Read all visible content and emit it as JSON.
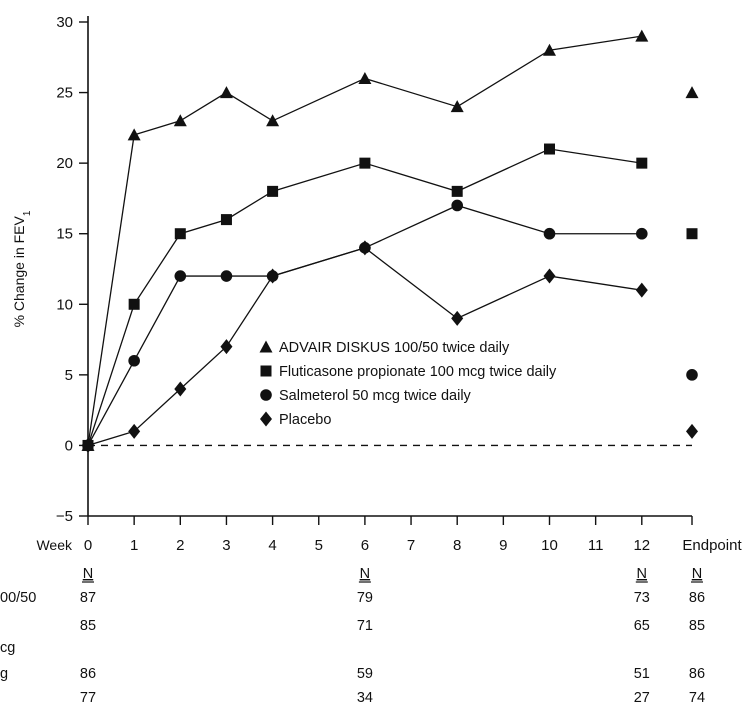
{
  "chart_data": {
    "type": "line",
    "title": "",
    "xlabel": "Week",
    "ylabel": "% Change in FEV1",
    "ylabel_main": "% Change in FEV",
    "ylabel_sub": "1",
    "ylim": [
      -5,
      30
    ],
    "yticks": [
      "30",
      "25",
      "20",
      "15",
      "10",
      "5",
      "0",
      "−5"
    ],
    "ytick_values": [
      30,
      25,
      20,
      15,
      10,
      5,
      0,
      -5
    ],
    "xticks": [
      "0",
      "1",
      "2",
      "3",
      "4",
      "5",
      "6",
      "7",
      "8",
      "9",
      "10",
      "11",
      "12"
    ],
    "xtick_values": [
      0,
      1,
      2,
      3,
      4,
      5,
      6,
      7,
      8,
      9,
      10,
      11,
      12
    ],
    "endpoint_label": "Endpoint",
    "reference_line": 0,
    "grid": false,
    "legend_position": "center",
    "series": [
      {
        "name": "ADVAIR DISKUS 100/50 twice daily",
        "marker": "triangle",
        "x": [
          0,
          1,
          2,
          3,
          4,
          6,
          8,
          10,
          12
        ],
        "values": [
          0,
          22,
          23,
          25,
          23,
          26,
          24,
          28,
          29
        ],
        "endpoint": 25
      },
      {
        "name": "Fluticasone propionate 100 mcg twice daily",
        "marker": "square",
        "x": [
          0,
          1,
          2,
          3,
          4,
          6,
          8,
          10,
          12
        ],
        "values": [
          0,
          10,
          15,
          16,
          18,
          20,
          18,
          21,
          20
        ],
        "endpoint": 15
      },
      {
        "name": "Salmeterol 50 mcg twice daily",
        "marker": "circle",
        "x": [
          0,
          1,
          2,
          3,
          4,
          6,
          8,
          10,
          12
        ],
        "values": [
          0,
          6,
          12,
          12,
          12,
          14,
          17,
          15,
          15
        ],
        "endpoint": 5
      },
      {
        "name": "Placebo",
        "marker": "diamond",
        "x": [
          0,
          1,
          2,
          3,
          4,
          6,
          8,
          10,
          12
        ],
        "values": [
          0,
          1,
          4,
          7,
          12,
          14,
          9,
          12,
          11
        ],
        "endpoint": 1
      }
    ],
    "n_table": {
      "header": "N",
      "header_columns": [
        "0",
        "6",
        "12",
        "Endpoint"
      ],
      "row_labels": [
        "00/50",
        "",
        "cg",
        "g",
        ""
      ],
      "rows": [
        {
          "label_index": 0,
          "cells": [
            {
              "col": "0",
              "value": "87"
            },
            {
              "col": "6",
              "value": "79"
            },
            {
              "col": "12",
              "value": "73"
            },
            {
              "col": "Endpoint",
              "value": "86"
            }
          ]
        },
        {
          "label_index": 1,
          "cells": [
            {
              "col": "0",
              "value": "85"
            },
            {
              "col": "6",
              "value": "71"
            },
            {
              "col": "12",
              "value": "65"
            },
            {
              "col": "Endpoint",
              "value": "85"
            }
          ]
        },
        {
          "label_index": 3,
          "cells": [
            {
              "col": "0",
              "value": "86"
            },
            {
              "col": "6",
              "value": "59"
            },
            {
              "col": "12",
              "value": "51"
            },
            {
              "col": "Endpoint",
              "value": "86"
            }
          ]
        },
        {
          "label_index": 4,
          "cells": [
            {
              "col": "0",
              "value": "77"
            },
            {
              "col": "6",
              "value": "34"
            },
            {
              "col": "12",
              "value": "27"
            },
            {
              "col": "Endpoint",
              "value": "74"
            }
          ]
        }
      ]
    },
    "colors": {
      "ink": "#111111",
      "background": "#ffffff"
    }
  }
}
